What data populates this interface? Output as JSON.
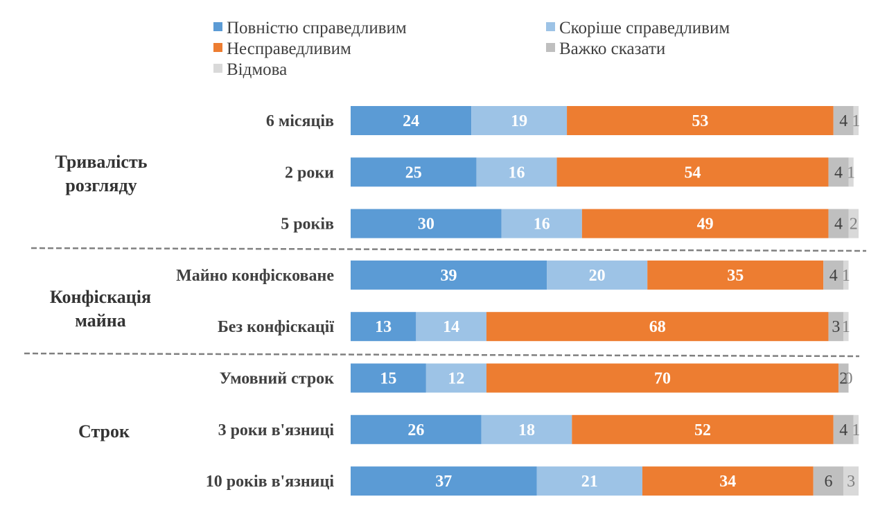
{
  "chart_data": {
    "type": "bar",
    "orientation": "horizontal",
    "stacked": true,
    "title": "",
    "xlabel": "",
    "ylabel": "",
    "xlim": [
      0,
      101
    ],
    "grid": false,
    "legend_position": "top",
    "categories": [
      "6 місяців",
      "2 роки",
      "5 років",
      "Майно конфісковане",
      "Без конфіскації",
      "Умовний строк",
      "3 роки в'язниці",
      "10 років в'язниці"
    ],
    "groups": [
      {
        "label_lines": [
          "Тривалість",
          "розгляду"
        ],
        "categories": [
          "6 місяців",
          "2 роки",
          "5 років"
        ]
      },
      {
        "label_lines": [
          "Конфіскація",
          "майна"
        ],
        "categories": [
          "Майно конфісковане",
          "Без конфіскації"
        ]
      },
      {
        "label_lines": [
          "Строк"
        ],
        "categories": [
          "Умовний строк",
          "3 роки в'язниці",
          "10 років в'язниці"
        ]
      }
    ],
    "series": [
      {
        "name": "Повністю справедливим",
        "color": "#5b9bd5",
        "label_style": "white-bold",
        "values": [
          24,
          25,
          30,
          39,
          13,
          15,
          26,
          37
        ]
      },
      {
        "name": "Скоріше справедливим",
        "color": "#9dc3e6",
        "label_style": "white-bold",
        "values": [
          19,
          16,
          16,
          20,
          14,
          12,
          18,
          21
        ]
      },
      {
        "name": "Несправедливим",
        "color": "#ed7d31",
        "label_style": "white-bold",
        "values": [
          53,
          54,
          49,
          35,
          68,
          70,
          52,
          34
        ]
      },
      {
        "name": "Важко сказати",
        "color": "#bfbfbf",
        "label_style": "dark",
        "values": [
          4,
          4,
          4,
          4,
          3,
          2,
          4,
          6
        ]
      },
      {
        "name": "Відмова",
        "color": "#d9d9d9",
        "label_style": "light",
        "values": [
          1,
          1,
          2,
          1,
          1,
          0,
          1,
          3
        ]
      }
    ]
  }
}
